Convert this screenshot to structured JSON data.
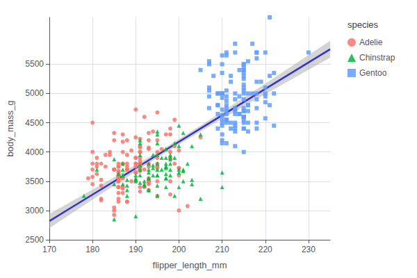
{
  "chart_data": {
    "type": "scatter",
    "xlabel": "flipper_length_mm",
    "ylabel": "body_mass_g",
    "legend_title": "species",
    "xlim": [
      170,
      235
    ],
    "ylim": [
      2500,
      6300
    ],
    "xticks": [
      170,
      180,
      190,
      200,
      210,
      220,
      230
    ],
    "yticks": [
      2500,
      3000,
      3500,
      4000,
      4500,
      5000,
      5500
    ],
    "grid": true,
    "legend": "right",
    "series": [
      {
        "name": "Adelie",
        "type": "scatter",
        "color": "#F8766D",
        "marker": "circle",
        "x": [
          181,
          186,
          195,
          193,
          190,
          181,
          195,
          193,
          190,
          186,
          180,
          182,
          191,
          198,
          185,
          180,
          180,
          191,
          195,
          191,
          186,
          193,
          184,
          199,
          190,
          181,
          197,
          198,
          190,
          181,
          187,
          193,
          186,
          183,
          185,
          186,
          187,
          187,
          188,
          194,
          186,
          180,
          182,
          191,
          191,
          186,
          186,
          186,
          191,
          185,
          180,
          192,
          198,
          198,
          199,
          200,
          190,
          202,
          205,
          185,
          186,
          190,
          186,
          192,
          191,
          195,
          186,
          193,
          195,
          187,
          185,
          193,
          195,
          191,
          198,
          191,
          199,
          191,
          187,
          193,
          187,
          188,
          191,
          188,
          198,
          191,
          200,
          191,
          200,
          191,
          193,
          187,
          188,
          188,
          192,
          193,
          185,
          193,
          186,
          180,
          183,
          184,
          189,
          186,
          193,
          179,
          182,
          182,
          186,
          188,
          191,
          196,
          200,
          185,
          195,
          190,
          182,
          200,
          185,
          186,
          188,
          190,
          187,
          188,
          191,
          190,
          186,
          187,
          193,
          189,
          195,
          191,
          195
        ],
        "values": [
          3750,
          3800,
          3250,
          3450,
          3650,
          3625,
          4675,
          3475,
          4250,
          3300,
          3700,
          3200,
          3800,
          4400,
          3700,
          3450,
          4500,
          3325,
          4200,
          3400,
          3600,
          3800,
          3950,
          3800,
          3800,
          3800,
          4300,
          4000,
          3900,
          3900,
          4175,
          4200,
          3750,
          3950,
          4200,
          3550,
          3300,
          4300,
          3700,
          4350,
          3550,
          3800,
          3800,
          3800,
          3800,
          3400,
          3750,
          3400,
          3750,
          4325,
          3575,
          4600,
          3275,
          3900,
          4100,
          3725,
          4725,
          3075,
          4250,
          2925,
          3550,
          3750,
          3150,
          3700,
          3800,
          4000,
          3500,
          3750,
          3750,
          3400,
          3700,
          3500,
          3800,
          3700,
          4300,
          4000,
          4550,
          3900,
          3550,
          4050,
          3375,
          3750,
          3675,
          3150,
          3500,
          3725,
          4025,
          4075,
          3600,
          4225,
          4075,
          3800,
          4200,
          3150,
          3400,
          4325,
          3050,
          3500,
          3675,
          4000,
          3750,
          4000,
          3500,
          3500,
          3350,
          3550,
          3425,
          3175,
          3200,
          3800,
          3850,
          4050,
          3000,
          3700,
          3900,
          3650,
          3525,
          3725,
          3000,
          3650,
          3700,
          3800,
          4000,
          3950,
          4100,
          3900,
          3600,
          3800,
          3550,
          4025,
          3725,
          4000,
          3500
        ]
      },
      {
        "name": "Chinstrap",
        "type": "scatter",
        "color": "#00BA38",
        "marker": "triangle",
        "x": [
          192,
          196,
          193,
          188,
          197,
          198,
          178,
          197,
          195,
          198,
          193,
          194,
          185,
          201,
          190,
          201,
          197,
          181,
          190,
          195,
          191,
          187,
          193,
          195,
          197,
          200,
          200,
          191,
          205,
          187,
          201,
          187,
          203,
          195,
          199,
          195,
          210,
          190,
          195,
          191,
          196,
          195,
          191,
          195,
          210,
          190,
          197,
          193,
          199,
          187,
          190,
          191,
          192,
          198,
          203,
          194,
          195,
          193,
          195,
          199,
          197,
          192,
          194,
          200,
          201,
          185,
          203,
          198,
          200,
          190,
          202,
          205,
          185,
          186,
          187,
          194,
          193,
          188,
          197,
          198,
          200,
          193,
          188,
          197,
          198,
          191,
          188,
          197,
          191,
          197
        ],
        "values": [
          3500,
          3900,
          3650,
          3525,
          3725,
          3950,
          3250,
          3750,
          4150,
          3700,
          3800,
          3775,
          2850,
          4325,
          3500,
          3500,
          3800,
          3700,
          3550,
          3800,
          3950,
          3600,
          3550,
          4300,
          3400,
          4450,
          4100,
          3600,
          4300,
          3800,
          3700,
          3450,
          4100,
          3250,
          3900,
          3600,
          3650,
          3525,
          3700,
          4150,
          3700,
          3600,
          3700,
          4350,
          3400,
          3600,
          3550,
          3700,
          4150,
          3700,
          3525,
          3475,
          3450,
          3900,
          3525,
          3725,
          3950,
          3350,
          3425,
          3250,
          3900,
          3425,
          3600,
          3650,
          3675,
          3450,
          3450,
          3600,
          3400,
          2900,
          3800,
          3200,
          3875,
          3625,
          3600,
          3950,
          3350,
          3425,
          3550,
          3800,
          3700,
          3550,
          3250,
          3625,
          3875,
          3775,
          3350,
          3750,
          4200,
          4050
        ]
      },
      {
        "name": "Gentoo",
        "type": "scatter",
        "color": "#619CFF",
        "marker": "square",
        "x": [
          211,
          230,
          210,
          218,
          215,
          210,
          211,
          219,
          209,
          215,
          214,
          216,
          214,
          213,
          210,
          217,
          210,
          221,
          209,
          222,
          218,
          215,
          213,
          215,
          215,
          215,
          216,
          215,
          210,
          220,
          222,
          209,
          207,
          212,
          210,
          211,
          218,
          220,
          209,
          207,
          215,
          210,
          211,
          210,
          215,
          213,
          215,
          210,
          220,
          215,
          213,
          215,
          215,
          210,
          220,
          211,
          213,
          207,
          210,
          215,
          215,
          213,
          221,
          214,
          213,
          213,
          210,
          210,
          207,
          215,
          213,
          211,
          212,
          215,
          218,
          212,
          209,
          218,
          207,
          211,
          218,
          216,
          211,
          213,
          211,
          213,
          215,
          222,
          215,
          213,
          215,
          211,
          216,
          220,
          217,
          221,
          212,
          215,
          216,
          215,
          213,
          216,
          211,
          210,
          218,
          220,
          218,
          207,
          205,
          208,
          215,
          218,
          210,
          211,
          214,
          211,
          209,
          216,
          211,
          215
        ],
        "values": [
          4500,
          5700,
          4450,
          5700,
          5400,
          4550,
          4800,
          5200,
          4400,
          5150,
          4650,
          5550,
          4650,
          5850,
          4200,
          5850,
          4150,
          6300,
          4800,
          5350,
          5700,
          5400,
          4500,
          4600,
          5500,
          5500,
          5000,
          5000,
          5000,
          4850,
          5000,
          5000,
          5500,
          4500,
          5500,
          4875,
          5000,
          5000,
          5000,
          4750,
          4000,
          4500,
          4550,
          5000,
          4400,
          4650,
          4900,
          4625,
          4575,
          5250,
          4725,
          5350,
          4750,
          4725,
          4950,
          4650,
          4900,
          5050,
          4300,
          4550,
          5450,
          4700,
          5300,
          4950,
          5700,
          4450,
          4925,
          5350,
          5550,
          4700,
          4350,
          5650,
          5200,
          4700,
          4900,
          4400,
          4650,
          4500,
          4950,
          4750,
          4400,
          4350,
          4550,
          4100,
          4550,
          4400,
          4600,
          4450,
          4600,
          5000,
          4500,
          4950,
          4700,
          5100,
          5000,
          4800,
          5300,
          4400,
          4800,
          5050,
          4750,
          4500,
          4150,
          5650,
          5600,
          5700,
          4750,
          5100,
          5400,
          5300,
          5300,
          5200,
          5000,
          5700,
          5400,
          4700,
          4800,
          4800,
          5050,
          5100
        ]
      },
      {
        "type": "line",
        "color": "#3333CC",
        "x": [
          170,
          175,
          180,
          185,
          190,
          195,
          200,
          205,
          210,
          215,
          220,
          225,
          230,
          235
        ],
        "values": [
          2819.9,
          3045.7,
          3271.6,
          3497.4,
          3723.3,
          3949.1,
          4175.0,
          4400.8,
          4626.6,
          4852.5,
          5078.3,
          5304.2,
          5530.0,
          5755.9
        ]
      },
      {
        "type": "band",
        "color": "#AAAAAA",
        "x": [
          170,
          175,
          180,
          185,
          190,
          195,
          200,
          205,
          210,
          215,
          220,
          225,
          230,
          235
        ],
        "lower": [
          2698.8,
          2942.1,
          3184.7,
          3426.1,
          3665.4,
          3900.6,
          4129.3,
          4350.4,
          4565.6,
          4777.3,
          4987.2,
          5196.1,
          5404.3,
          5612.2
        ],
        "upper": [
          2941.0,
          3149.4,
          3358.5,
          3568.7,
          3781.2,
          3997.6,
          4220.6,
          4451.2,
          4687.7,
          4927.7,
          5169.5,
          5412.3,
          5655.7,
          5899.6
        ]
      }
    ]
  }
}
